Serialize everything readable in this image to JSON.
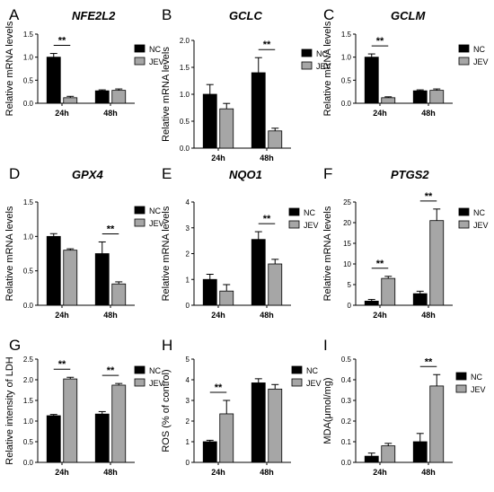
{
  "colors": {
    "nc": "#000000",
    "jev": "#a6a6a6",
    "axis": "#000000"
  },
  "chart_data": [
    {
      "panel": "A",
      "title": "NFE2L2",
      "type": "bar",
      "ylabel": "Relative mRNA levels",
      "ylim": [
        0,
        1.5
      ],
      "yticks": [
        "0.0",
        "0.5",
        "1.0",
        "1.5"
      ],
      "categories": [
        "24h",
        "48h"
      ],
      "series": [
        {
          "name": "NC",
          "values": [
            1.0,
            0.27
          ],
          "errors": [
            0.08,
            0.02
          ]
        },
        {
          "name": "JEV",
          "values": [
            0.12,
            0.28
          ],
          "errors": [
            0.03,
            0.03
          ]
        }
      ],
      "significance": [
        {
          "category": "24h",
          "label": "**"
        }
      ]
    },
    {
      "panel": "B",
      "title": "GCLC",
      "type": "bar",
      "ylabel": "Relative mRNA levels",
      "ylim": [
        0,
        2.0
      ],
      "yticks": [
        "0.0",
        "0.5",
        "1.0",
        "1.5",
        "2.0"
      ],
      "categories": [
        "24h",
        "48h"
      ],
      "series": [
        {
          "name": "NC",
          "values": [
            1.0,
            1.4
          ],
          "errors": [
            0.18,
            0.28
          ]
        },
        {
          "name": "JEV",
          "values": [
            0.73,
            0.32
          ],
          "errors": [
            0.1,
            0.05
          ]
        }
      ],
      "significance": [
        {
          "category": "48h",
          "label": "**"
        }
      ]
    },
    {
      "panel": "C",
      "title": "GCLM",
      "type": "bar",
      "ylabel": "Relative mRNA levels",
      "ylim": [
        0,
        1.5
      ],
      "yticks": [
        "0.0",
        "0.5",
        "1.0",
        "1.5"
      ],
      "categories": [
        "24h",
        "48h"
      ],
      "series": [
        {
          "name": "NC",
          "values": [
            1.0,
            0.27
          ],
          "errors": [
            0.07,
            0.02
          ]
        },
        {
          "name": "JEV",
          "values": [
            0.12,
            0.28
          ],
          "errors": [
            0.02,
            0.03
          ]
        }
      ],
      "significance": [
        {
          "category": "24h",
          "label": "**"
        }
      ]
    },
    {
      "panel": "D",
      "title": "GPX4",
      "type": "bar",
      "ylabel": "Relative mRNA levels",
      "ylim": [
        0,
        1.5
      ],
      "yticks": [
        "0.0",
        "0.5",
        "1.0",
        "1.5"
      ],
      "categories": [
        "24h",
        "48h"
      ],
      "series": [
        {
          "name": "NC",
          "values": [
            1.0,
            0.75
          ],
          "errors": [
            0.04,
            0.17
          ]
        },
        {
          "name": "JEV",
          "values": [
            0.8,
            0.31
          ],
          "errors": [
            0.02,
            0.03
          ]
        }
      ],
      "significance": [
        {
          "category": "48h",
          "label": "**"
        }
      ]
    },
    {
      "panel": "E",
      "title": "NQO1",
      "type": "bar",
      "ylabel": "Relative mRNA levels",
      "ylim": [
        0,
        4
      ],
      "yticks": [
        "0",
        "1",
        "2",
        "3",
        "4"
      ],
      "categories": [
        "24h",
        "48h"
      ],
      "series": [
        {
          "name": "NC",
          "values": [
            1.0,
            2.55
          ],
          "errors": [
            0.2,
            0.3
          ]
        },
        {
          "name": "JEV",
          "values": [
            0.55,
            1.6
          ],
          "errors": [
            0.25,
            0.18
          ]
        }
      ],
      "significance": [
        {
          "category": "48h",
          "label": "**"
        }
      ]
    },
    {
      "panel": "F",
      "title": "PTGS2",
      "type": "bar",
      "ylabel": "Relative mRNA levels",
      "ylim": [
        0,
        25
      ],
      "yticks": [
        "0",
        "5",
        "10",
        "15",
        "20",
        "25"
      ],
      "categories": [
        "24h",
        "48h"
      ],
      "series": [
        {
          "name": "NC",
          "values": [
            1.0,
            2.8
          ],
          "errors": [
            0.4,
            0.6
          ]
        },
        {
          "name": "JEV",
          "values": [
            6.5,
            20.5
          ],
          "errors": [
            0.5,
            2.8
          ]
        }
      ],
      "significance": [
        {
          "category": "24h",
          "label": "**"
        },
        {
          "category": "48h",
          "label": "**"
        }
      ]
    },
    {
      "panel": "G",
      "title": "",
      "type": "bar",
      "ylabel": "Relative intensity of LDH",
      "ylim": [
        0,
        2.5
      ],
      "yticks": [
        "0.0",
        "0.5",
        "1.0",
        "1.5",
        "2.0",
        "2.5"
      ],
      "categories": [
        "24h",
        "48h"
      ],
      "series": [
        {
          "name": "NC",
          "values": [
            1.13,
            1.17
          ],
          "errors": [
            0.03,
            0.06
          ]
        },
        {
          "name": "JEV",
          "values": [
            2.02,
            1.87
          ],
          "errors": [
            0.04,
            0.04
          ]
        }
      ],
      "significance": [
        {
          "category": "24h",
          "label": "**"
        },
        {
          "category": "48h",
          "label": "**"
        }
      ]
    },
    {
      "panel": "H",
      "title": "",
      "type": "bar",
      "ylabel": "ROS (% of control)",
      "ylim": [
        0,
        5
      ],
      "yticks": [
        "0",
        "1",
        "2",
        "3",
        "4",
        "5"
      ],
      "categories": [
        "24h",
        "48h"
      ],
      "series": [
        {
          "name": "NC",
          "values": [
            1.0,
            3.85
          ],
          "errors": [
            0.07,
            0.2
          ]
        },
        {
          "name": "JEV",
          "values": [
            2.35,
            3.55
          ],
          "errors": [
            0.65,
            0.22
          ]
        }
      ],
      "significance": [
        {
          "category": "24h",
          "label": "**"
        }
      ]
    },
    {
      "panel": "I",
      "title": "",
      "type": "bar",
      "ylabel": "MDA(μmol/mg)",
      "ylim": [
        0,
        0.5
      ],
      "yticks": [
        "0.0",
        "0.1",
        "0.2",
        "0.3",
        "0.4",
        "0.5"
      ],
      "categories": [
        "24h",
        "48h"
      ],
      "series": [
        {
          "name": "NC",
          "values": [
            0.03,
            0.1
          ],
          "errors": [
            0.015,
            0.04
          ]
        },
        {
          "name": "JEV",
          "values": [
            0.08,
            0.37
          ],
          "errors": [
            0.012,
            0.055
          ]
        }
      ],
      "significance": [
        {
          "category": "48h",
          "label": "**"
        }
      ]
    }
  ]
}
